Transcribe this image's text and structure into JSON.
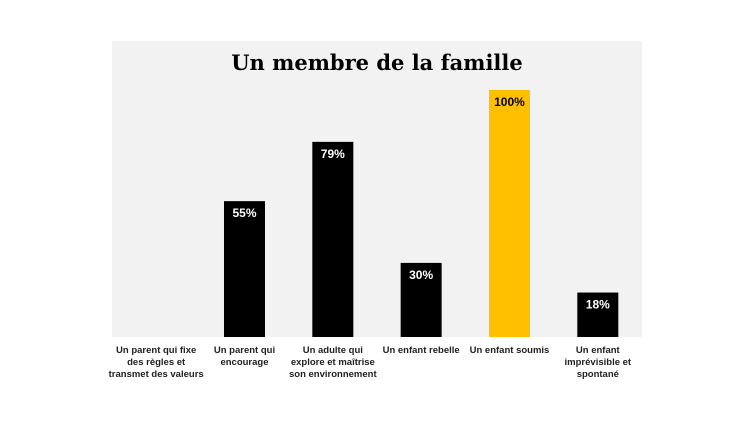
{
  "chart_data": {
    "type": "bar",
    "title": "Un membre de la famille",
    "xlabel": "",
    "ylabel": "",
    "ylim": [
      0,
      100
    ],
    "grid": false,
    "categories": [
      "Un parent qui fixe des règles et transmet des valeurs",
      "Un parent qui encourage",
      "Un adulte qui explore et maîtrise son environnement",
      "Un enfant rebelle",
      "Un enfant soumis",
      "Un enfant imprévisible et spontané"
    ],
    "values": [
      0,
      55,
      79,
      30,
      100,
      18
    ],
    "data_labels": [
      "",
      "55%",
      "79%",
      "30%",
      "100%",
      "18%"
    ],
    "colors": [
      "#000000",
      "#000000",
      "#000000",
      "#000000",
      "#ffc000",
      "#000000"
    ],
    "label_colors": [
      "#ffffff",
      "#ffffff",
      "#ffffff",
      "#ffffff",
      "#000000",
      "#ffffff"
    ],
    "background": "#f2f2f2"
  }
}
